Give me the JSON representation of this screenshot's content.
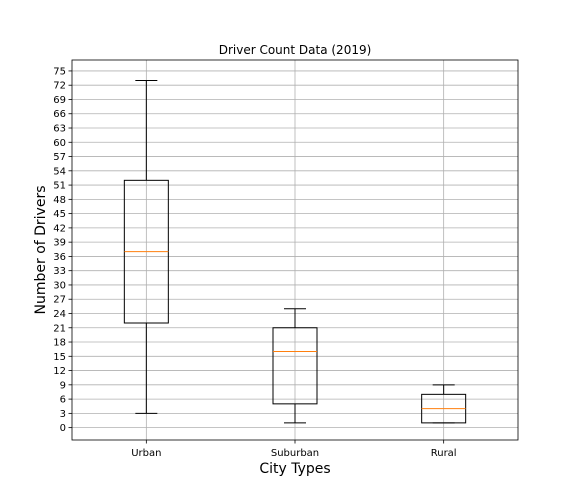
{
  "chart_data": {
    "type": "box",
    "title": "Driver Count Data (2019)",
    "xlabel": "City Types",
    "ylabel": "Number of Drivers",
    "categories": [
      "Urban",
      "Suburban",
      "Rural"
    ],
    "boxes": [
      {
        "category": "Urban",
        "whisker_low": 3,
        "q1": 22,
        "median": 37,
        "q3": 52,
        "whisker_high": 73
      },
      {
        "category": "Suburban",
        "whisker_low": 1,
        "q1": 5,
        "median": 16,
        "q3": 21,
        "whisker_high": 25
      },
      {
        "category": "Rural",
        "whisker_low": 1,
        "q1": 1,
        "median": 4,
        "q3": 7,
        "whisker_high": 9
      }
    ],
    "yticks": [
      0,
      3,
      6,
      9,
      12,
      15,
      18,
      21,
      24,
      27,
      30,
      33,
      36,
      39,
      42,
      45,
      48,
      51,
      54,
      57,
      60,
      63,
      66,
      69,
      72,
      75
    ],
    "ylim": [
      -2.6,
      77.3
    ],
    "grid": true,
    "colors": {
      "box": "#000000",
      "median": "#ff7f0e",
      "grid": "#b0b0b0"
    }
  }
}
